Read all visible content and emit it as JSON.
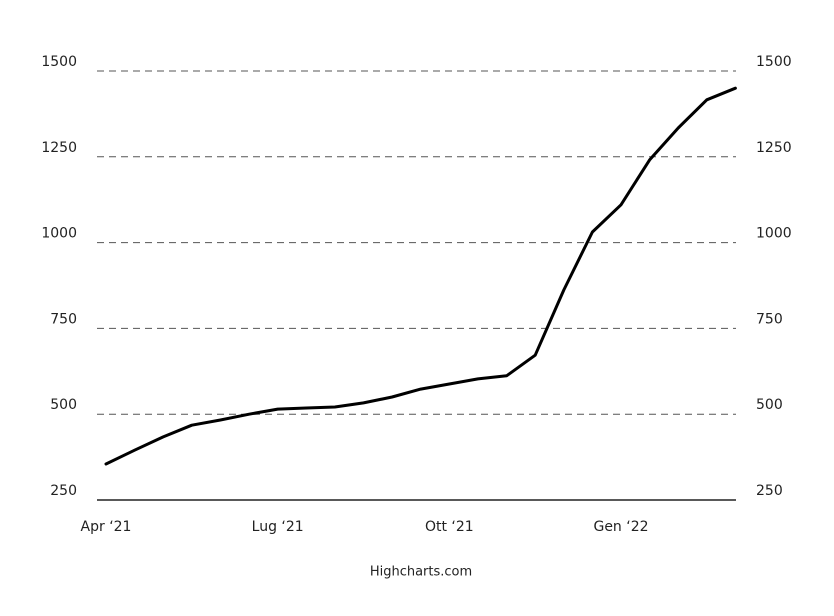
{
  "chart_data": {
    "type": "line",
    "credits": "Highcharts.com",
    "categories": [
      "Apr ‘21",
      null,
      null,
      null,
      null,
      null,
      "Lug ‘21",
      null,
      null,
      null,
      null,
      null,
      "Ott ‘21",
      null,
      null,
      null,
      null,
      null,
      "Gen ‘22",
      null,
      null,
      null,
      null
    ],
    "series": [
      {
        "color": "#000000",
        "values": [
          355,
          395,
          434,
          468,
          483,
          500,
          515,
          518,
          521,
          533,
          550,
          573,
          588,
          603,
          612,
          672,
          862,
          1031,
          1110,
          1241,
          1334,
          1416,
          1450
        ]
      }
    ],
    "ylim": [
      250,
      1500
    ],
    "yticks": [
      250,
      500,
      750,
      1000,
      1250,
      1500
    ],
    "y2lim": [
      250,
      1500
    ],
    "y2ticks": [
      250,
      500,
      750,
      1000,
      1250,
      1500
    ],
    "grid": true
  }
}
